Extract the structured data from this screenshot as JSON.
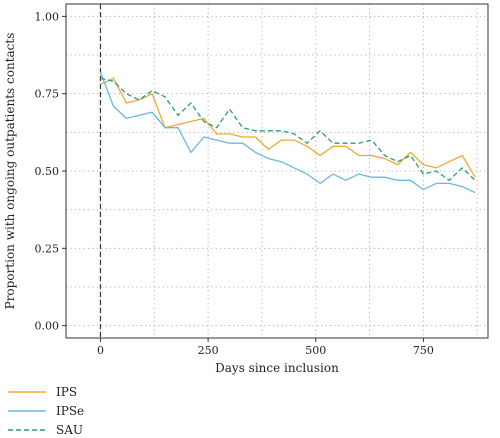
{
  "chart_data": {
    "type": "line",
    "xlabel": "Days since inclusion",
    "ylabel": "Proportion with ongoing outpatients contacts",
    "xlim": [
      -80,
      900
    ],
    "ylim": [
      -0.04,
      1.04
    ],
    "x_ticks": [
      0,
      250,
      500,
      750
    ],
    "x_tick_labels": [
      "0",
      "250",
      "500",
      "750"
    ],
    "y_ticks": [
      0,
      0.25,
      0.5,
      0.75,
      1
    ],
    "y_tick_labels": [
      "0.00",
      "0.25",
      "0.50",
      "0.75",
      "1.00"
    ],
    "grid": "dotted",
    "reference_line_x": 0,
    "legend": {
      "placement": "bottom-left"
    },
    "series": [
      {
        "name": "IPS",
        "color": "#f0a92e",
        "dash": "solid",
        "x": [
          0,
          30,
          60,
          90,
          120,
          150,
          180,
          210,
          240,
          270,
          300,
          330,
          360,
          390,
          420,
          450,
          480,
          510,
          540,
          570,
          600,
          630,
          660,
          690,
          720,
          750,
          780,
          810,
          840,
          870
        ],
        "y": [
          0.78,
          0.8,
          0.72,
          0.73,
          0.75,
          0.64,
          0.65,
          0.66,
          0.67,
          0.62,
          0.62,
          0.61,
          0.61,
          0.57,
          0.6,
          0.6,
          0.58,
          0.55,
          0.58,
          0.58,
          0.55,
          0.55,
          0.54,
          0.52,
          0.56,
          0.52,
          0.51,
          0.53,
          0.55,
          0.48
        ]
      },
      {
        "name": "IPSe",
        "color": "#6cb7e2",
        "dash": "solid",
        "x": [
          0,
          30,
          60,
          90,
          120,
          150,
          180,
          210,
          240,
          270,
          300,
          330,
          360,
          390,
          420,
          450,
          480,
          510,
          540,
          570,
          600,
          630,
          660,
          690,
          720,
          750,
          780,
          810,
          840,
          870
        ],
        "y": [
          0.82,
          0.71,
          0.67,
          0.68,
          0.69,
          0.64,
          0.64,
          0.56,
          0.61,
          0.6,
          0.59,
          0.59,
          0.56,
          0.54,
          0.53,
          0.51,
          0.49,
          0.46,
          0.49,
          0.47,
          0.49,
          0.48,
          0.48,
          0.47,
          0.47,
          0.44,
          0.46,
          0.46,
          0.45,
          0.43
        ]
      },
      {
        "name": "SAU",
        "color": "#2e9a7e",
        "dash": "dashed",
        "x": [
          0,
          30,
          60,
          90,
          120,
          150,
          180,
          210,
          240,
          270,
          300,
          330,
          360,
          390,
          420,
          450,
          480,
          510,
          540,
          570,
          600,
          630,
          660,
          690,
          720,
          750,
          780,
          810,
          840,
          870
        ],
        "y": [
          0.8,
          0.79,
          0.75,
          0.73,
          0.76,
          0.74,
          0.68,
          0.72,
          0.66,
          0.64,
          0.7,
          0.64,
          0.63,
          0.63,
          0.63,
          0.62,
          0.59,
          0.63,
          0.59,
          0.59,
          0.59,
          0.6,
          0.55,
          0.53,
          0.55,
          0.49,
          0.5,
          0.47,
          0.51,
          0.47
        ]
      }
    ]
  }
}
